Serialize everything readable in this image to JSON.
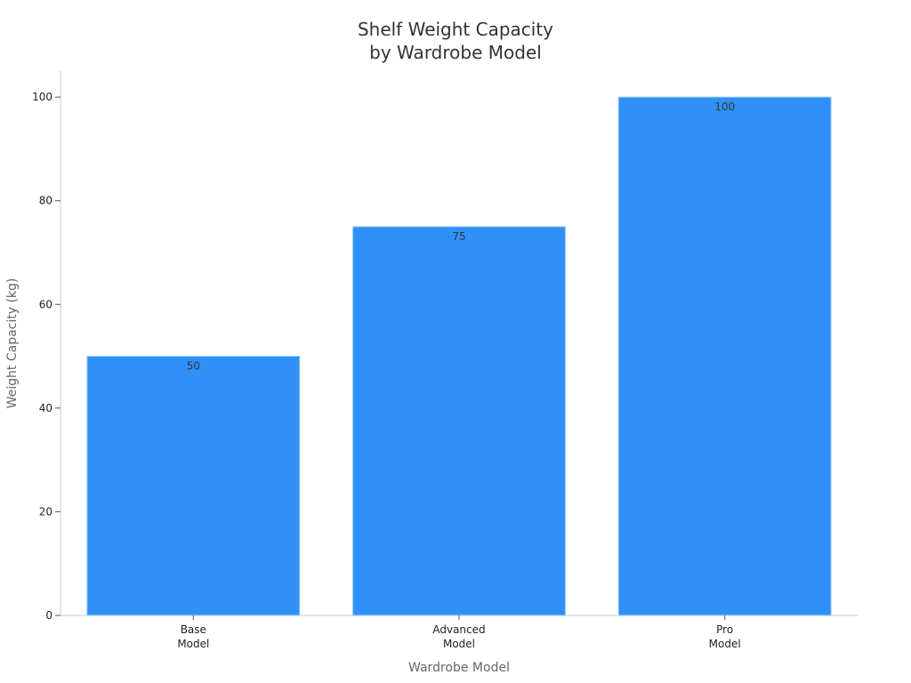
{
  "chart_data": {
    "type": "bar",
    "title_lines": [
      "Shelf Weight Capacity",
      "by Wardrobe Model"
    ],
    "xlabel": "Wardrobe Model",
    "ylabel": "Weight Capacity (kg)",
    "categories": [
      [
        "Base",
        "Model"
      ],
      [
        "Advanced",
        "Model"
      ],
      [
        "Pro",
        "Model"
      ]
    ],
    "values": [
      50,
      75,
      100
    ],
    "data_labels": [
      "50",
      "75",
      "100"
    ],
    "ylim": [
      0,
      105
    ],
    "yticks": [
      0,
      20,
      40,
      60,
      80,
      100
    ],
    "bar_color": "#2f91f8",
    "grid": false,
    "legend": "none"
  }
}
